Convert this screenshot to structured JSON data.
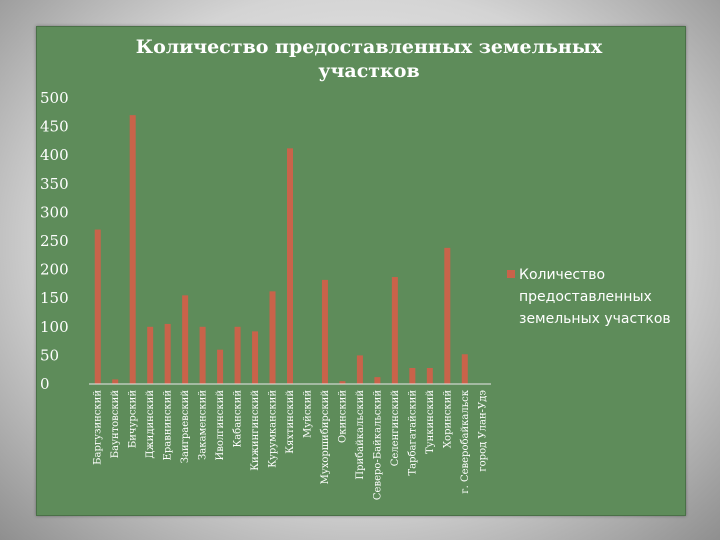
{
  "chart_data": {
    "type": "bar",
    "title": "Количество предоставленных земельных участков",
    "title_lines": [
      "Количество предоставленных земельных",
      "участков"
    ],
    "xlabel": "",
    "ylabel": "",
    "ylim": [
      0,
      500
    ],
    "yticks": [
      "500",
      "450",
      "400",
      "350",
      "300",
      "250",
      "200",
      "150",
      "100",
      "50",
      "0"
    ],
    "grid": false,
    "legend_position": "right",
    "legend_lines": [
      "Количество",
      "предоставленных",
      "земельных участков"
    ],
    "bar_color": "#c9634a",
    "categories": [
      "Баргузинский",
      "Баунтовский",
      "Бичурский",
      "Джидинский",
      "Еравнинский",
      "Заиграевский",
      "Закаменский",
      "Иволгинский",
      "Кабанский",
      "Кижингинский",
      "Курумканский",
      "Кяхтинский",
      "Муйский",
      "Мухоршибирский",
      "Окинский",
      "Прибайкальский",
      "Северо-Байкальский",
      "Селенгинский",
      "Тарбагатайский",
      "Тункинский",
      "Хоринский",
      "г. Северобайкальск",
      "город Улан-Удэ"
    ],
    "series": [
      {
        "name": "Количество предоставленных земельных участков",
        "values": [
          270,
          8,
          470,
          100,
          105,
          155,
          100,
          60,
          100,
          92,
          162,
          412,
          0,
          182,
          5,
          50,
          12,
          187,
          28,
          28,
          238,
          52,
          0
        ]
      }
    ]
  },
  "colors": {
    "background": "#5e8c5a",
    "bar": "#c9634a",
    "text": "#ffffff"
  }
}
